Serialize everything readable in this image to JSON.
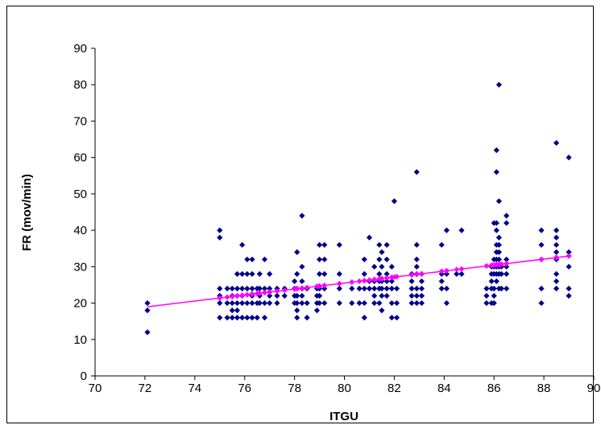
{
  "chart_data": {
    "type": "scatter",
    "title": "",
    "xlabel": "ITGU",
    "ylabel": "FR (mov/min)",
    "xlim": [
      70,
      90
    ],
    "ylim": [
      0,
      90
    ],
    "xticks": [
      70,
      72,
      74,
      76,
      78,
      80,
      82,
      84,
      86,
      88,
      90
    ],
    "yticks": [
      0,
      10,
      20,
      30,
      40,
      50,
      60,
      70,
      80,
      90
    ],
    "grid": false,
    "legend": "none",
    "marker_color": "#00008B",
    "trendline_color": "#FF00FF",
    "trendline": {
      "x": [
        72.1,
        89.1
      ],
      "y": [
        19.0,
        33.0
      ]
    },
    "points": [
      [
        72.1,
        20
      ],
      [
        72.1,
        18
      ],
      [
        72.1,
        12
      ],
      [
        75,
        40
      ],
      [
        75,
        38
      ],
      [
        75,
        24
      ],
      [
        75,
        22
      ],
      [
        75,
        20
      ],
      [
        75,
        16
      ],
      [
        75.3,
        24
      ],
      [
        75.3,
        20
      ],
      [
        75.3,
        16
      ],
      [
        75.5,
        24
      ],
      [
        75.5,
        22
      ],
      [
        75.5,
        20
      ],
      [
        75.5,
        18
      ],
      [
        75.5,
        16
      ],
      [
        75.7,
        28
      ],
      [
        75.7,
        24
      ],
      [
        75.7,
        22
      ],
      [
        75.7,
        20
      ],
      [
        75.7,
        18
      ],
      [
        75.7,
        16
      ],
      [
        75.9,
        36
      ],
      [
        75.9,
        28
      ],
      [
        75.9,
        24
      ],
      [
        75.9,
        22
      ],
      [
        75.9,
        20
      ],
      [
        75.9,
        16
      ],
      [
        76.1,
        32
      ],
      [
        76.1,
        28
      ],
      [
        76.1,
        24
      ],
      [
        76.1,
        20
      ],
      [
        76.1,
        16
      ],
      [
        76.3,
        32
      ],
      [
        76.3,
        28
      ],
      [
        76.3,
        24
      ],
      [
        76.3,
        22
      ],
      [
        76.3,
        20
      ],
      [
        76.3,
        16
      ],
      [
        76.5,
        24
      ],
      [
        76.5,
        20
      ],
      [
        76.5,
        16
      ],
      [
        76.6,
        28
      ],
      [
        76.6,
        24
      ],
      [
        76.6,
        22
      ],
      [
        76.6,
        20
      ],
      [
        76.8,
        32
      ],
      [
        76.8,
        24
      ],
      [
        76.8,
        20
      ],
      [
        76.8,
        16
      ],
      [
        77,
        28
      ],
      [
        77,
        24
      ],
      [
        77,
        22
      ],
      [
        77,
        20
      ],
      [
        77.3,
        24
      ],
      [
        77.3,
        22
      ],
      [
        77.3,
        20
      ],
      [
        77.6,
        24
      ],
      [
        77.6,
        22
      ],
      [
        78,
        26
      ],
      [
        78,
        24
      ],
      [
        78,
        22
      ],
      [
        78,
        20
      ],
      [
        78.1,
        34
      ],
      [
        78.1,
        28
      ],
      [
        78.1,
        24
      ],
      [
        78.1,
        22
      ],
      [
        78.1,
        20
      ],
      [
        78.1,
        18
      ],
      [
        78.1,
        16
      ],
      [
        78.3,
        44
      ],
      [
        78.3,
        30
      ],
      [
        78.3,
        26
      ],
      [
        78.3,
        24
      ],
      [
        78.3,
        22
      ],
      [
        78.3,
        20
      ],
      [
        78.5,
        24
      ],
      [
        78.5,
        20
      ],
      [
        78.5,
        16
      ],
      [
        78.9,
        24
      ],
      [
        78.9,
        22
      ],
      [
        78.9,
        20
      ],
      [
        78.9,
        18
      ],
      [
        79,
        36
      ],
      [
        79,
        32
      ],
      [
        79,
        28
      ],
      [
        79,
        24
      ],
      [
        79,
        22
      ],
      [
        79,
        20
      ],
      [
        79.2,
        36
      ],
      [
        79.2,
        32
      ],
      [
        79.2,
        28
      ],
      [
        79.2,
        24
      ],
      [
        79.2,
        20
      ],
      [
        79.8,
        36
      ],
      [
        79.8,
        28
      ],
      [
        79.8,
        24
      ],
      [
        79.8,
        20
      ],
      [
        80.3,
        24
      ],
      [
        80.3,
        20
      ],
      [
        80.6,
        24
      ],
      [
        80.6,
        20
      ],
      [
        80.8,
        32
      ],
      [
        80.8,
        28
      ],
      [
        80.8,
        24
      ],
      [
        80.8,
        20
      ],
      [
        80.8,
        16
      ],
      [
        81,
        38
      ],
      [
        81,
        26
      ],
      [
        81,
        24
      ],
      [
        81.2,
        30
      ],
      [
        81.2,
        26
      ],
      [
        81.2,
        24
      ],
      [
        81.2,
        22
      ],
      [
        81.2,
        20
      ],
      [
        81.4,
        36
      ],
      [
        81.4,
        32
      ],
      [
        81.4,
        28
      ],
      [
        81.4,
        26
      ],
      [
        81.4,
        24
      ],
      [
        81.4,
        20
      ],
      [
        81.5,
        34
      ],
      [
        81.5,
        30
      ],
      [
        81.5,
        26
      ],
      [
        81.5,
        24
      ],
      [
        81.5,
        22
      ],
      [
        81.5,
        18
      ],
      [
        81.7,
        36
      ],
      [
        81.7,
        32
      ],
      [
        81.7,
        28
      ],
      [
        81.7,
        26
      ],
      [
        81.7,
        24
      ],
      [
        81.7,
        22
      ],
      [
        81.9,
        30
      ],
      [
        81.9,
        26
      ],
      [
        81.9,
        24
      ],
      [
        81.9,
        20
      ],
      [
        81.9,
        16
      ],
      [
        82,
        48
      ],
      [
        82.1,
        24
      ],
      [
        82.1,
        20
      ],
      [
        82.1,
        16
      ],
      [
        82.7,
        28
      ],
      [
        82.7,
        26
      ],
      [
        82.7,
        24
      ],
      [
        82.7,
        22
      ],
      [
        82.7,
        20
      ],
      [
        82.9,
        56
      ],
      [
        82.9,
        36
      ],
      [
        82.9,
        32
      ],
      [
        82.9,
        30
      ],
      [
        82.9,
        28
      ],
      [
        82.9,
        24
      ],
      [
        82.9,
        22
      ],
      [
        82.9,
        20
      ],
      [
        83.1,
        28
      ],
      [
        83.1,
        26
      ],
      [
        83.1,
        24
      ],
      [
        83.1,
        22
      ],
      [
        83.1,
        20
      ],
      [
        83.9,
        36
      ],
      [
        83.9,
        28
      ],
      [
        83.9,
        26
      ],
      [
        83.9,
        24
      ],
      [
        84.1,
        40
      ],
      [
        84.1,
        28
      ],
      [
        84.1,
        24
      ],
      [
        84.1,
        20
      ],
      [
        84.5,
        28
      ],
      [
        84.7,
        40
      ],
      [
        84.7,
        28
      ],
      [
        85.7,
        24
      ],
      [
        85.7,
        22
      ],
      [
        85.7,
        20
      ],
      [
        85.9,
        30
      ],
      [
        85.9,
        28
      ],
      [
        85.9,
        26
      ],
      [
        85.9,
        24
      ],
      [
        85.9,
        20
      ],
      [
        86,
        42
      ],
      [
        86,
        32
      ],
      [
        86,
        30
      ],
      [
        86,
        28
      ],
      [
        86,
        24
      ],
      [
        86,
        22
      ],
      [
        86,
        20
      ],
      [
        86.1,
        62
      ],
      [
        86.1,
        56
      ],
      [
        86.1,
        42
      ],
      [
        86.1,
        40
      ],
      [
        86.1,
        36
      ],
      [
        86.1,
        34
      ],
      [
        86.1,
        32
      ],
      [
        86.1,
        30
      ],
      [
        86.1,
        28
      ],
      [
        86.1,
        26
      ],
      [
        86.2,
        80
      ],
      [
        86.2,
        48
      ],
      [
        86.2,
        38
      ],
      [
        86.2,
        36
      ],
      [
        86.2,
        34
      ],
      [
        86.2,
        32
      ],
      [
        86.2,
        30
      ],
      [
        86.2,
        28
      ],
      [
        86.2,
        24
      ],
      [
        86.3,
        30
      ],
      [
        86.3,
        28
      ],
      [
        86.3,
        24
      ],
      [
        86.5,
        44
      ],
      [
        86.5,
        42
      ],
      [
        86.5,
        32
      ],
      [
        86.5,
        30
      ],
      [
        86.5,
        28
      ],
      [
        86.5,
        24
      ],
      [
        87.9,
        40
      ],
      [
        87.9,
        36
      ],
      [
        87.9,
        32
      ],
      [
        87.9,
        24
      ],
      [
        87.9,
        20
      ],
      [
        88.5,
        64
      ],
      [
        88.5,
        40
      ],
      [
        88.5,
        38
      ],
      [
        88.5,
        36
      ],
      [
        88.5,
        34
      ],
      [
        88.5,
        32
      ],
      [
        88.5,
        28
      ],
      [
        88.5,
        26
      ],
      [
        88.5,
        24
      ],
      [
        89,
        60
      ],
      [
        89,
        34
      ],
      [
        89,
        30
      ],
      [
        89,
        24
      ],
      [
        89,
        22
      ]
    ]
  }
}
